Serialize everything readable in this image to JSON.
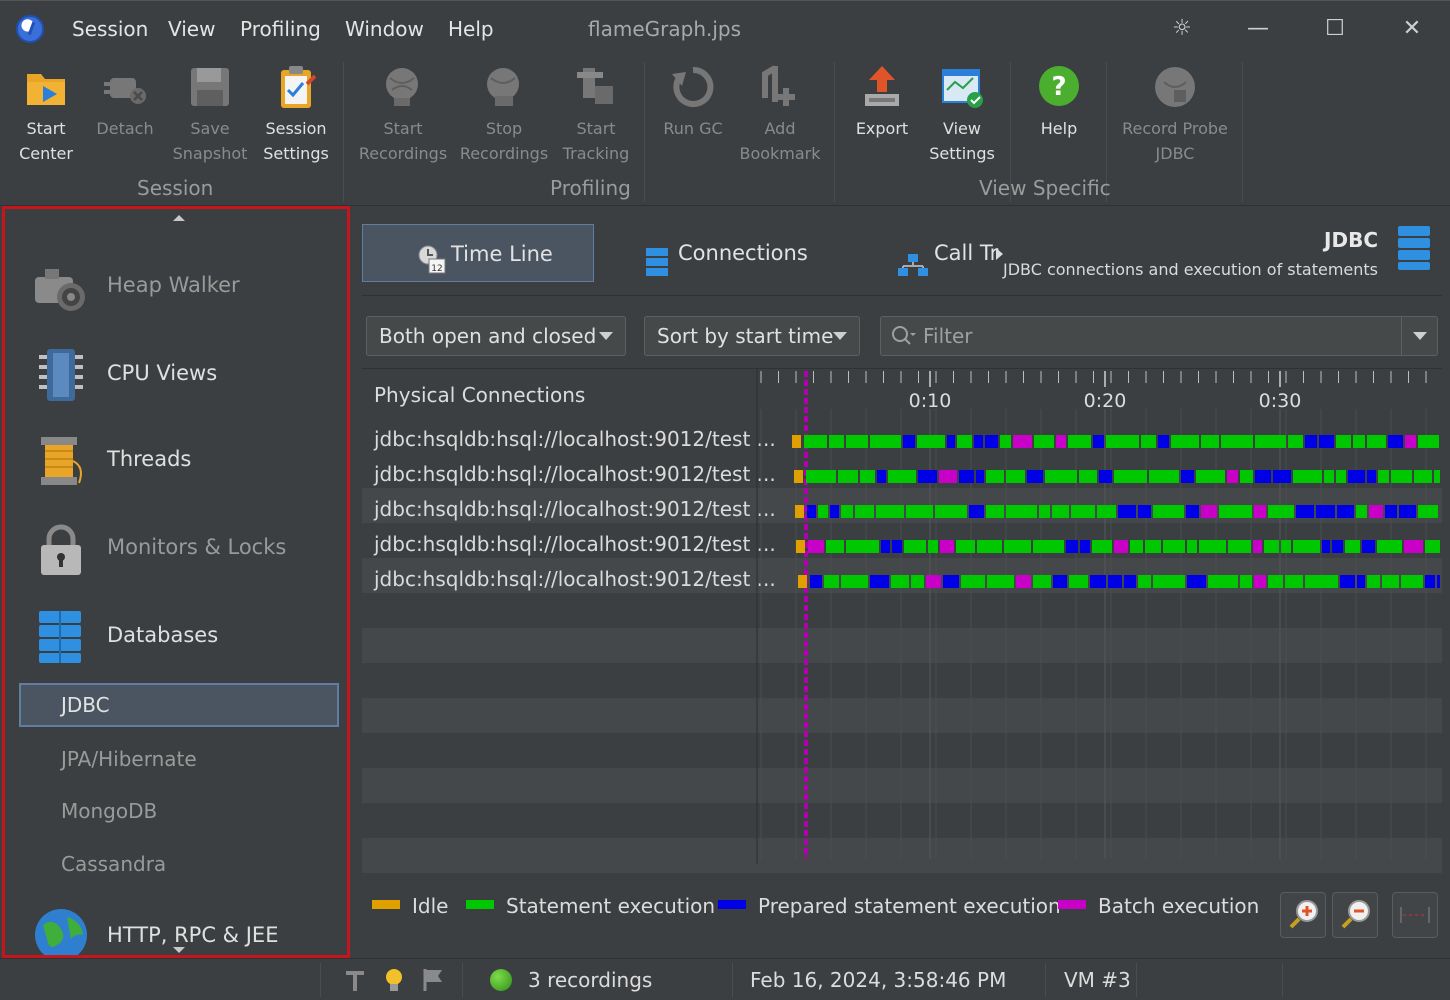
{
  "menu": {
    "items": [
      "Session",
      "View",
      "Profiling",
      "Window",
      "Help"
    ],
    "window_title": "flameGraph.jps"
  },
  "window_controls": {
    "theme": "☼",
    "minimize": "—",
    "maximize": "☐",
    "close": "✕"
  },
  "toolbar": {
    "start_center": "Start\nCenter",
    "detach": "Detach",
    "save_snapshot": "Save\nSnapshot",
    "session_settings": "Session\nSettings",
    "start_recordings": "Start\nRecordings",
    "stop_recordings": "Stop\nRecordings",
    "start_tracking": "Start\nTracking",
    "run_gc": "Run GC",
    "add_bookmark": "Add\nBookmark",
    "export": "Export",
    "view_settings": "View\nSettings",
    "help": "Help",
    "record_probe": "Record Probe\nJDBC",
    "groups": {
      "session": "Session",
      "profiling": "Profiling",
      "view_specific": "View Specific"
    }
  },
  "sidebar": {
    "sections": {
      "heap_walker": "Heap Walker",
      "cpu_views": "CPU Views",
      "threads": "Threads",
      "monitors_locks": "Monitors & Locks",
      "databases": "Databases",
      "http": "HTTP, RPC & JEE"
    },
    "sub_items": [
      "JDBC",
      "JPA/Hibernate",
      "MongoDB",
      "Cassandra"
    ],
    "selected": "JDBC"
  },
  "tabs": {
    "time_line": "Time Line",
    "connections": "Connections",
    "call_tree": "Call Tr"
  },
  "view_header": {
    "title": "JDBC",
    "description": "JDBC connections and execution of statements"
  },
  "filters": {
    "state": "Both open and closed",
    "sort": "Sort by start time",
    "filter_placeholder": "Filter"
  },
  "table": {
    "column_header": "Physical Connections",
    "rows": [
      "jdbc:hsqldb:hsql://localhost:9012/test ...",
      "jdbc:hsqldb:hsql://localhost:9012/test ...",
      "jdbc:hsqldb:hsql://localhost:9012/test ...",
      "jdbc:hsqldb:hsql://localhost:9012/test ...",
      "jdbc:hsqldb:hsql://localhost:9012/test ..."
    ],
    "time_labels": [
      "0:10",
      "0:20",
      "0:30"
    ]
  },
  "legend": {
    "idle": {
      "label": "Idle",
      "color": "#e0a000"
    },
    "statement": {
      "label": "Statement execution",
      "color": "#00c800"
    },
    "prepared": {
      "label": "Prepared statement execution",
      "color": "#0000e6"
    },
    "batch": {
      "label": "Batch execution",
      "color": "#c800c8"
    }
  },
  "status": {
    "recordings": "3 recordings",
    "datetime": "Feb 16, 2024, 3:58:46 PM",
    "vm": "VM #3"
  }
}
